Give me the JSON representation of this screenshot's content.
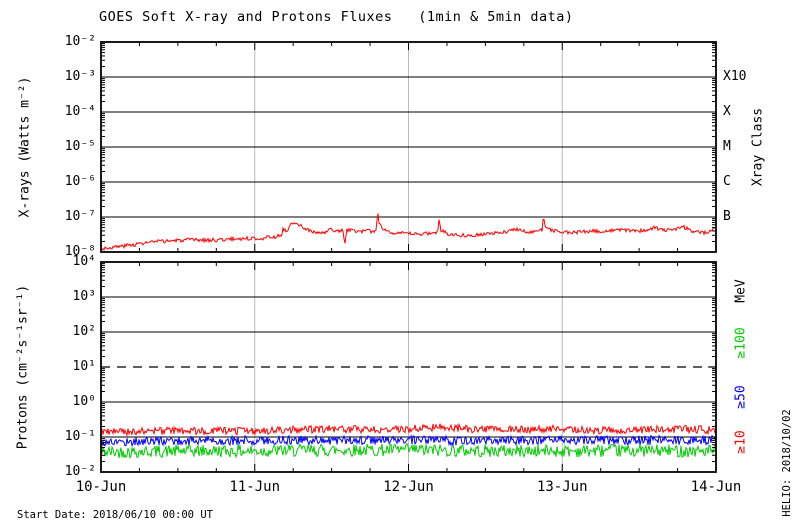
{
  "title": "GOES Soft X-ray and Protons Fluxes   (1min & 5min data)",
  "footer": {
    "start_date": "Start Date: 2018/06/10 00:00 UT",
    "credit": "HELIO: 2018/10/02"
  },
  "x_axis": {
    "tick_labels": [
      "10-Jun",
      "11-Jun",
      "12-Jun",
      "13-Jun",
      "14-Jun"
    ],
    "span_days": 4,
    "minor_ticks_per_day": 4
  },
  "panels": [
    {
      "id": "xray",
      "ylabel": "X-rays (Watts m⁻²)",
      "tick_labels": [
        "10⁻²",
        "10⁻³",
        "10⁻⁴",
        "10⁻⁵",
        "10⁻⁶",
        "10⁻⁷",
        "10⁻⁸"
      ],
      "right_axis_title": "Xray Class",
      "right_labels": [
        {
          "label": "X10",
          "exp": -3
        },
        {
          "label": "X",
          "exp": -4
        },
        {
          "label": "M",
          "exp": -5
        },
        {
          "label": "C",
          "exp": -6
        },
        {
          "label": "B",
          "exp": -7
        }
      ],
      "decade_lines": [
        -3,
        -4,
        -5,
        -6,
        -7
      ],
      "dashed_lines": []
    },
    {
      "id": "protons",
      "ylabel": "Protons (cm⁻²s⁻¹sr⁻¹)",
      "tick_labels": [
        "10⁴",
        "10³",
        "10²",
        "10¹",
        "10⁰",
        "10⁻¹",
        "10⁻²"
      ],
      "right_axis_title": "MeV",
      "legend": [
        {
          "label": "≥100",
          "color": "#00cc00",
          "pos_exp": 1.7
        },
        {
          "label": "≥50",
          "color": "#0000ff",
          "pos_exp": 0.15
        },
        {
          "label": "≥10",
          "color": "#ff0000",
          "pos_exp": -1.15
        }
      ],
      "decade_lines": [
        3,
        2,
        0,
        -1
      ],
      "dashed_lines": [
        1
      ]
    }
  ],
  "chart_data": {
    "type": "line",
    "title": "GOES Soft X-ray and Protons Fluxes (1min & 5min data)",
    "x_unit": "days since 2018/06/10 00:00 UT",
    "x_range": [
      0,
      4
    ],
    "x_tick_labels": [
      "10-Jun",
      "11-Jun",
      "12-Jun",
      "13-Jun",
      "14-Jun"
    ],
    "grid": "vertical gray lines at day boundaries",
    "grid_color": "#b9b9b9",
    "panels": [
      {
        "name": "xray",
        "ylabel": "X-rays (Watts m-2)",
        "ylim": [
          1e-08,
          0.01
        ],
        "scale": "log",
        "series": [
          {
            "name": "goes-xray-long",
            "color": "#ff0000",
            "seed": 3,
            "noise_decades": 0.055,
            "anchors": [
              [
                0.0,
                1.25e-08
              ],
              [
                0.1,
                1.4e-08
              ],
              [
                0.2,
                1.6e-08
              ],
              [
                0.32,
                1.9e-08
              ],
              [
                0.45,
                2.1e-08
              ],
              [
                0.6,
                2.2e-08
              ],
              [
                0.75,
                2.2e-08
              ],
              [
                0.9,
                2.4e-08
              ],
              [
                1.05,
                2.5e-08
              ],
              [
                1.15,
                2.8e-08
              ],
              [
                1.18,
                3.2e-08
              ],
              [
                1.185,
                5e-08
              ],
              [
                1.2,
                3.8e-08
              ],
              [
                1.24,
                6.4e-08
              ],
              [
                1.29,
                5.8e-08
              ],
              [
                1.34,
                4.4e-08
              ],
              [
                1.4,
                3.4e-08
              ],
              [
                1.46,
                3.6e-08
              ],
              [
                1.5,
                4.5e-08
              ],
              [
                1.54,
                3.8e-08
              ],
              [
                1.575,
                4.2e-08
              ],
              [
                1.585,
                1.5e-08
              ],
              [
                1.6,
                4.3e-08
              ],
              [
                1.66,
                4e-08
              ],
              [
                1.72,
                3.9e-08
              ],
              [
                1.78,
                4e-08
              ],
              [
                1.793,
                4.2e-08
              ],
              [
                1.798,
                1.6e-07
              ],
              [
                1.808,
                7e-08
              ],
              [
                1.84,
                4.4e-08
              ],
              [
                1.9,
                3.6e-08
              ],
              [
                1.98,
                3.3e-08
              ],
              [
                2.08,
                3.3e-08
              ],
              [
                2.16,
                3.5e-08
              ],
              [
                2.19,
                3.6e-08
              ],
              [
                2.197,
                9.5e-08
              ],
              [
                2.21,
                4.2e-08
              ],
              [
                2.26,
                3.3e-08
              ],
              [
                2.36,
                3e-08
              ],
              [
                2.48,
                3.2e-08
              ],
              [
                2.6,
                3.5e-08
              ],
              [
                2.7,
                4.6e-08
              ],
              [
                2.75,
                3.8e-08
              ],
              [
                2.82,
                3.9e-08
              ],
              [
                2.868,
                4.2e-08
              ],
              [
                2.876,
                1.05e-07
              ],
              [
                2.89,
                5.2e-08
              ],
              [
                2.94,
                4e-08
              ],
              [
                3.05,
                3.6e-08
              ],
              [
                3.18,
                3.9e-08
              ],
              [
                3.3,
                4e-08
              ],
              [
                3.42,
                4.3e-08
              ],
              [
                3.52,
                4e-08
              ],
              [
                3.6,
                4.9e-08
              ],
              [
                3.66,
                4.1e-08
              ],
              [
                3.73,
                4.4e-08
              ],
              [
                3.78,
                5.6e-08
              ],
              [
                3.84,
                3.9e-08
              ],
              [
                3.92,
                3.6e-08
              ],
              [
                3.97,
                4e-08
              ],
              [
                4.0,
                5.2e-08
              ]
            ]
          }
        ]
      },
      {
        "name": "protons",
        "ylabel": "Protons (cm-2 s-1 sr-1)",
        "ylim": [
          0.01,
          10000.0
        ],
        "scale": "log",
        "threshold_dashed_at": 10,
        "series": [
          {
            "name": "protons-ge-100MeV",
            "color": "#00cc00",
            "seed": 42,
            "noise_decades": 0.18,
            "anchors": [
              [
                0,
                0.037
              ],
              [
                0.5,
                0.04
              ],
              [
                1.0,
                0.04
              ],
              [
                1.5,
                0.042
              ],
              [
                2.0,
                0.043
              ],
              [
                2.5,
                0.04
              ],
              [
                3.0,
                0.04
              ],
              [
                3.5,
                0.041
              ],
              [
                4,
                0.04
              ]
            ]
          },
          {
            "name": "protons-ge-50MeV",
            "color": "#0000ff",
            "seed": 17,
            "noise_decades": 0.13,
            "anchors": [
              [
                0,
                0.072
              ],
              [
                0.5,
                0.078
              ],
              [
                1.0,
                0.08
              ],
              [
                1.5,
                0.082
              ],
              [
                2.0,
                0.08
              ],
              [
                2.5,
                0.078
              ],
              [
                3.0,
                0.08
              ],
              [
                3.5,
                0.08
              ],
              [
                4,
                0.082
              ]
            ]
          },
          {
            "name": "protons-ge-10MeV",
            "color": "#ff0000",
            "seed": 9,
            "noise_decades": 0.11,
            "anchors": [
              [
                0,
                0.14
              ],
              [
                0.5,
                0.15
              ],
              [
                1.0,
                0.15
              ],
              [
                1.5,
                0.17
              ],
              [
                1.9,
                0.16
              ],
              [
                2.2,
                0.19
              ],
              [
                2.5,
                0.16
              ],
              [
                2.9,
                0.17
              ],
              [
                3.3,
                0.15
              ],
              [
                3.7,
                0.17
              ],
              [
                4,
                0.16
              ]
            ]
          }
        ]
      }
    ]
  }
}
